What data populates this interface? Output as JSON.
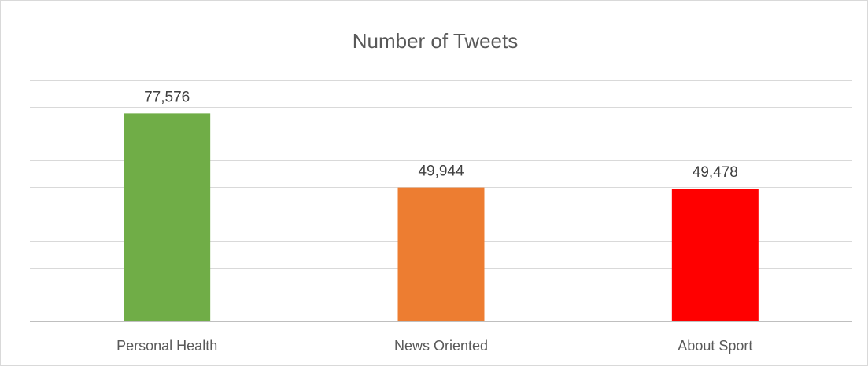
{
  "chart_data": {
    "type": "bar",
    "title": "Number of Tweets",
    "categories": [
      "Personal Health",
      "News Oriented",
      "About Sport"
    ],
    "values": [
      77576,
      49944,
      49478
    ],
    "data_labels": [
      "77,576",
      "49,944",
      "49,478"
    ],
    "colors": [
      "#70ad47",
      "#ed7d31",
      "#ff0000"
    ],
    "ylim": [
      0,
      90000
    ],
    "y_tick_step": 10000,
    "grid": true,
    "legend": "none",
    "xlabel": "",
    "ylabel": ""
  }
}
